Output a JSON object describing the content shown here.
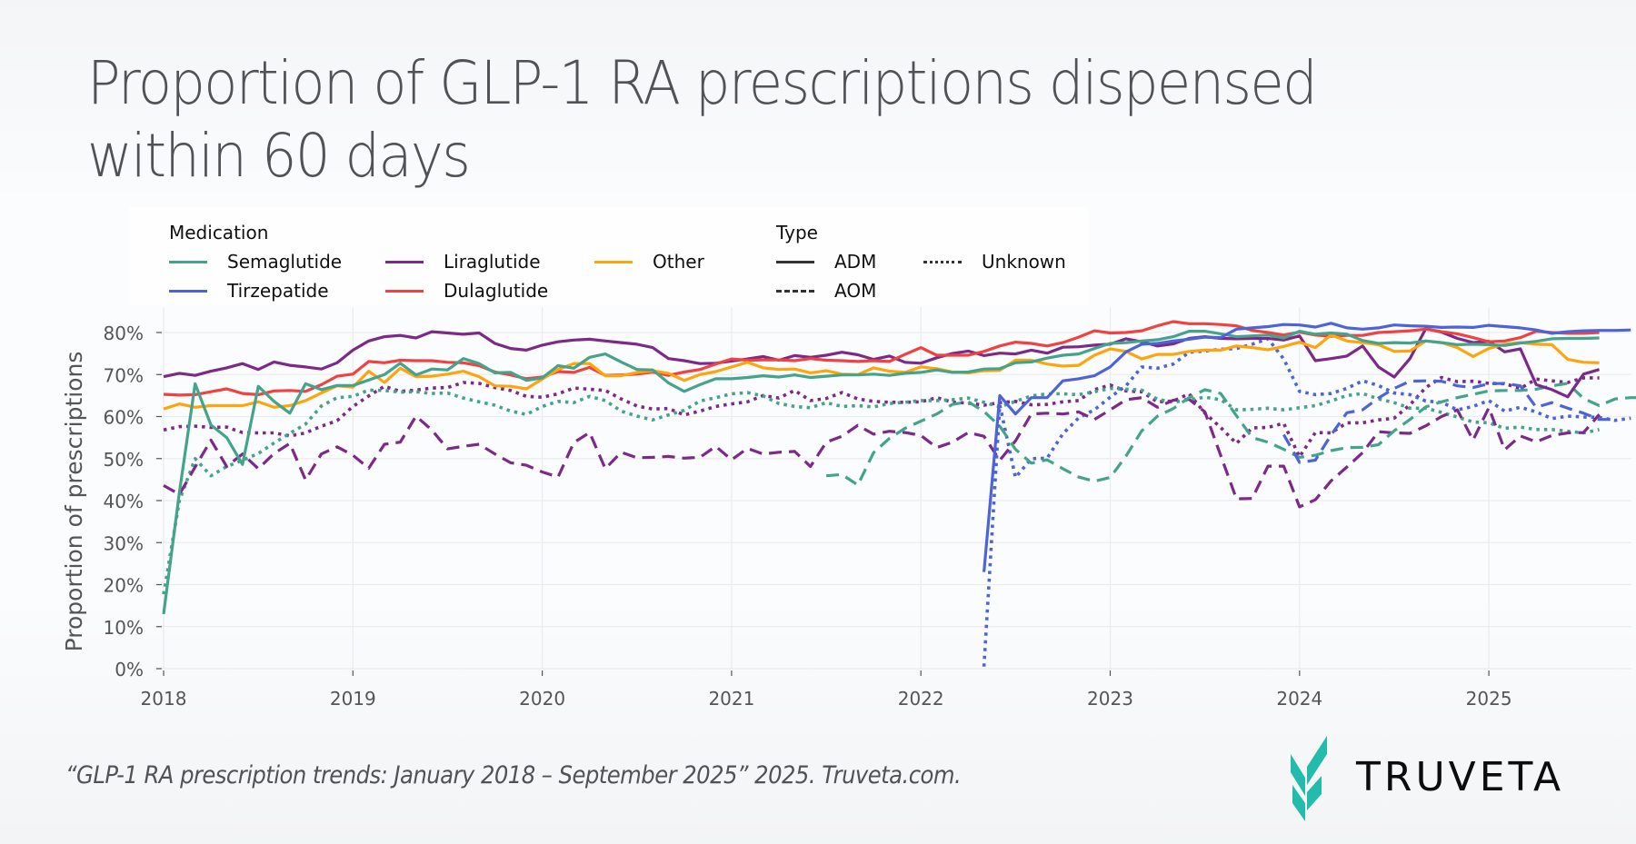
{
  "header": {
    "title_line1": "Proportion of GLP-1 RA prescriptions dispensed",
    "title_line2": "within 60 days"
  },
  "legend": {
    "medication_title": "Medication",
    "type_title": "Type",
    "medications": [
      {
        "label": "Semaglutide",
        "color": "#45a38c"
      },
      {
        "label": "Tirzepatide",
        "color": "#4c64d8"
      },
      {
        "label": "Liraglutide",
        "color": "#7b2a8a"
      },
      {
        "label": "Dulaglutide",
        "color": "#ef4241"
      },
      {
        "label": "Other",
        "color": "#ffa40a"
      }
    ],
    "types": [
      {
        "label": "ADM",
        "style": "solid"
      },
      {
        "label": "AOM",
        "style": "dashed"
      },
      {
        "label": "Unknown",
        "style": "dotted"
      }
    ]
  },
  "footer": {
    "citation": "“GLP-1 RA prescription trends: January 2018 – September 2025” 2025. Truveta.com.",
    "logo_text": "TRUVETA",
    "logo_color": "#23bcac"
  },
  "chart_data": {
    "type": "line",
    "title": "Proportion of GLP-1 RA prescriptions dispensed within 60 days",
    "xlabel": "",
    "ylabel": "Proportion of prescriptions",
    "x_start": "2018-01",
    "x_interval": "month",
    "xlim": [
      2018.0,
      2025.75
    ],
    "ylim": [
      0,
      82
    ],
    "y_ticks": [
      "0%",
      "10%",
      "20%",
      "30%",
      "40%",
      "50%",
      "60%",
      "70%",
      "80%"
    ],
    "x_ticks": [
      "2018",
      "2019",
      "2020",
      "2021",
      "2022",
      "2023",
      "2024",
      "2025"
    ],
    "grid": true,
    "legend_position": "top",
    "series": [
      {
        "name": "Liraglutide ADM",
        "medication": "Liraglutide",
        "type": "ADM",
        "start": 0,
        "values": [
          69.5,
          70.3,
          69.8,
          70.8,
          71.6,
          72.6,
          71.2,
          73,
          72.2,
          71.8,
          71.3,
          72.8,
          75.8,
          78,
          79,
          79.3,
          78.7,
          80.2,
          79.9,
          79.6,
          79.9,
          77.4,
          76.2,
          75.8,
          77,
          77.8,
          78.2,
          78.4,
          78,
          77.6,
          77.2,
          76.4,
          73.8,
          73.3,
          72.6,
          72.7,
          73.2,
          73.7,
          74.3,
          73.4,
          74.5,
          74.1,
          74.6,
          75.3,
          74.7,
          73.6,
          74.4,
          72.9,
          72.7,
          74,
          75,
          75.6,
          74.5,
          75.1,
          74.9,
          75.8,
          75.1,
          76.5,
          76.6,
          77,
          77.2,
          78.5,
          77.8,
          76.8,
          77.3,
          78.6,
          79,
          78.6,
          78.5,
          78.6,
          78.6,
          78.2,
          79.2,
          73.3,
          73.8,
          74.4,
          76.8,
          71.8,
          69.4,
          73.8,
          80.9,
          80.1,
          78.6,
          77.6,
          77.9,
          75.4,
          76.1,
          67.6,
          66.4,
          64.7,
          70.1,
          71.2
        ]
      },
      {
        "name": "Dulaglutide ADM",
        "medication": "Dulaglutide",
        "type": "ADM",
        "start": 0,
        "values": [
          65.3,
          65.1,
          65.2,
          65.9,
          66.6,
          65.5,
          65.2,
          66.1,
          66.2,
          66,
          67.6,
          69.6,
          70.1,
          73.1,
          72.8,
          73.4,
          73.3,
          73.3,
          72.9,
          72.8,
          72.1,
          70.6,
          69.9,
          69,
          69.4,
          70.7,
          70.5,
          71.7,
          69.8,
          69.9,
          70.1,
          70.6,
          69.8,
          70.6,
          71.2,
          72.5,
          73.7,
          73.4,
          73.5,
          73.5,
          73.3,
          73.8,
          73.4,
          73.3,
          73.1,
          73.3,
          73.1,
          74.8,
          76.4,
          74.6,
          74.6,
          74.6,
          75.5,
          76.8,
          77.7,
          77.4,
          76.8,
          77.6,
          78.9,
          80.4,
          79.9,
          80,
          80.4,
          81.6,
          82.6,
          82.1,
          82.1,
          81.9,
          81.6,
          80.5,
          80,
          79.4,
          80.1,
          79.4,
          79.1,
          79.3,
          79.3,
          80,
          80.2,
          80.4,
          80.8,
          80.2,
          79.7,
          78.8,
          77.8,
          78,
          78.8,
          80.3,
          80,
          79.8,
          79.8,
          80
        ]
      },
      {
        "name": "Other ADM",
        "medication": "Other",
        "type": "ADM",
        "start": 0,
        "values": [
          61.8,
          63,
          62.2,
          62.6,
          62.6,
          62.6,
          63.5,
          62.2,
          62.6,
          63.8,
          65.6,
          67.3,
          67,
          70.8,
          68.1,
          71.5,
          69.5,
          69.6,
          70.1,
          70.8,
          69.5,
          67.3,
          67.2,
          66.6,
          68.9,
          71.2,
          72.6,
          72.6,
          69.7,
          69.7,
          70.5,
          70.9,
          70.3,
          68.6,
          70,
          70.7,
          71.8,
          72.9,
          71.6,
          71.2,
          71.3,
          70.4,
          70.9,
          70.1,
          70,
          71.6,
          70.8,
          70.5,
          71.8,
          71.4,
          70.6,
          70.4,
          70.9,
          71,
          73.4,
          73.4,
          72.5,
          72,
          72.2,
          74.6,
          76.1,
          75.5,
          73.7,
          74.8,
          74.8,
          75.5,
          75.8,
          75.8,
          76.8,
          76.4,
          75.9,
          76.7,
          77.7,
          76.4,
          79.4,
          78,
          77.6,
          77.1,
          75.5,
          75.6,
          78,
          77.6,
          76.4,
          74.3,
          76.2,
          77.2,
          77.6,
          77.2,
          77.1,
          73.6,
          72.9,
          72.8
        ]
      },
      {
        "name": "Semaglutide ADM",
        "medication": "Semaglutide",
        "type": "ADM",
        "start": 0,
        "values": [
          13,
          42,
          67.8,
          58,
          55,
          48.6,
          67.2,
          63.6,
          60.8,
          67.8,
          66.4,
          67.4,
          67.4,
          68.7,
          70,
          72.7,
          69.9,
          71.3,
          71.1,
          73.8,
          72.6,
          70.4,
          70.5,
          68.6,
          69.2,
          72.1,
          71.5,
          74.1,
          74.9,
          73,
          71.2,
          71.1,
          68,
          66,
          67.6,
          69,
          69,
          69.3,
          69.7,
          69.4,
          69.9,
          69.3,
          69.6,
          69.9,
          69.9,
          70.1,
          69.8,
          70.3,
          70.5,
          71.1,
          70.5,
          70.6,
          71.3,
          71.4,
          72.8,
          73,
          73.9,
          74.6,
          74.9,
          76.2,
          77.4,
          77.6,
          78,
          78.3,
          79,
          80.3,
          80.3,
          79.7,
          79,
          79.2,
          79.4,
          78.7,
          80.3,
          79.6,
          79.9,
          79.6,
          78.1,
          77.4,
          77.6,
          77.5,
          78,
          77.6,
          77.1,
          77.2,
          77.1,
          76.9,
          77.5,
          77.9,
          78.5,
          78.6,
          78.6,
          78.7
        ]
      },
      {
        "name": "Tirzepatide ADM",
        "medication": "Tirzepatide",
        "type": "ADM",
        "start": 52,
        "values": [
          23,
          65,
          60.6,
          64.5,
          64.5,
          68.5,
          69,
          69.7,
          71.8,
          75.4,
          77.2,
          77.4,
          78,
          78.4,
          78.9,
          78.8,
          80.8,
          81.1,
          81.4,
          81.9,
          81.8,
          81.3,
          82.2,
          81.1,
          80.8,
          81.1,
          81.8,
          81.6,
          81.5,
          81.2,
          81.3,
          81.2,
          81.7,
          81.4,
          81.1,
          80.6,
          79.8,
          80.2,
          80.4,
          80.5,
          80.5,
          80.6
        ]
      },
      {
        "name": "Liraglutide Unknown",
        "medication": "Liraglutide",
        "type": "Unknown",
        "start": 0,
        "values": [
          56.8,
          57.6,
          57.7,
          57.4,
          57.5,
          56.2,
          56.1,
          56.1,
          55.4,
          56.1,
          57.7,
          59,
          62.4,
          64.9,
          67.2,
          66,
          66.3,
          66.8,
          66.9,
          68.1,
          67.9,
          66.9,
          66.2,
          64.8,
          64.6,
          65.4,
          66.8,
          66.5,
          66.2,
          64.2,
          62.5,
          61.8,
          61.9,
          60.4,
          61.3,
          62.4,
          63,
          63.5,
          65,
          64.4,
          66.2,
          63.8,
          64.3,
          65.7,
          64.2,
          63.6,
          63.4,
          63.4,
          63.5,
          64.5,
          63.4,
          63.2,
          62.7,
          63.3,
          63.6,
          62.8,
          62.9,
          63.5,
          63.8,
          66.4,
          67.5,
          66.1,
          65.9,
          63.5,
          63.7,
          65.4,
          60.8,
          57.4,
          53.6,
          57.3,
          57.4,
          58.4,
          50.4,
          56.2,
          56.1,
          58.5,
          58.5,
          59.2,
          59.6,
          62.8,
          66.9,
          69.3,
          68.3,
          68.4,
          67.9,
          67.8,
          66.7,
          68.9,
          68.5,
          68.1,
          69.2,
          69.2
        ]
      },
      {
        "name": "Semaglutide Unknown",
        "medication": "Semaglutide",
        "type": "Unknown",
        "start": 0,
        "values": [
          17.7,
          40,
          50,
          45.9,
          48.1,
          49.6,
          51.2,
          53.7,
          56,
          58.2,
          62.5,
          64.5,
          64.8,
          66.3,
          66.2,
          65.8,
          65.9,
          65.5,
          65.6,
          64.4,
          63.5,
          62.7,
          61.3,
          60.5,
          62.4,
          63.6,
          63.3,
          64.8,
          63.8,
          61.3,
          60.1,
          59.2,
          60.4,
          61.5,
          63.7,
          64.5,
          65.4,
          65.7,
          64.9,
          63.1,
          62.4,
          62.1,
          63.3,
          62.4,
          62.6,
          62.3,
          63.1,
          63.4,
          63.8,
          63.8,
          64,
          64.4,
          63.4,
          62.3,
          63.6,
          64.9,
          65.4,
          65.4,
          65.2,
          65.9,
          66.7,
          66.5,
          66.3,
          64.1,
          63.4,
          64,
          64.6,
          64,
          61.6,
          61.7,
          62,
          61.6,
          62.1,
          62.6,
          63.7,
          65,
          65.5,
          64.2,
          63.3,
          62,
          62,
          61,
          59.9,
          58.7,
          58.5,
          57.2,
          57.5,
          56.9,
          56.9,
          56.5,
          56.1,
          56.9
        ]
      },
      {
        "name": "Tirzepatide Unknown",
        "medication": "Tirzepatide",
        "type": "Unknown",
        "start": 52,
        "values": [
          0.5,
          62.8,
          45.5,
          50,
          50.1,
          55.9,
          59.7,
          61.6,
          64.6,
          67.3,
          71.8,
          71.5,
          72.5,
          75.3,
          75.6,
          76,
          76.2,
          77.2,
          78.5,
          73.7,
          66,
          65.2,
          65.5,
          66.7,
          68.5,
          67.4,
          65.6,
          65.2,
          63.7,
          63.4,
          61.6,
          62.4,
          63.8,
          61.3,
          62.2,
          61.1,
          59.5,
          60.1,
          59.9,
          59.8,
          59.1,
          59.6
        ]
      },
      {
        "name": "Liraglutide AOM",
        "medication": "Liraglutide",
        "type": "AOM",
        "start": 0,
        "values": [
          43.6,
          41.5,
          48,
          54.4,
          48.1,
          51.1,
          47.6,
          51.2,
          53.6,
          44.9,
          51.1,
          52.8,
          50.8,
          47.7,
          53.4,
          53.9,
          60.1,
          56.8,
          52.3,
          52.9,
          53.4,
          51.1,
          49,
          48.4,
          46.8,
          45.6,
          53.8,
          56.2,
          47.6,
          51.5,
          50.2,
          50.3,
          50.5,
          50.1,
          50.3,
          52.9,
          49.7,
          52.4,
          51.1,
          51.5,
          51.7,
          48.1,
          53.9,
          55.3,
          57.9,
          55.8,
          56.5,
          56.2,
          55.5,
          52.6,
          53.9,
          56.2,
          55.3,
          49.6,
          54.2,
          60.6,
          60.8,
          60.6,
          61.1,
          59.3,
          61.6,
          64,
          64.5,
          62.2,
          63.9,
          64.1,
          61.1,
          50.8,
          40.4,
          40.5,
          48.2,
          48.2,
          38.5,
          40.2,
          44.7,
          48,
          51.4,
          56.4,
          56.1,
          56,
          57.8,
          60,
          61.6,
          54.4,
          62.1,
          52.1,
          55.4,
          54,
          55.5,
          56.1,
          56.2,
          60.5
        ]
      },
      {
        "name": "Semaglutide AOM",
        "medication": "Semaglutide",
        "type": "AOM",
        "start": 42,
        "values": [
          45.9,
          46.2,
          43.7,
          51.4,
          54.8,
          57.2,
          58.9,
          60.6,
          62.9,
          63.5,
          61.2,
          57.7,
          52.2,
          48.9,
          49.7,
          47.6,
          45.6,
          44.6,
          45.5,
          50.6,
          56.6,
          60.1,
          61.9,
          64.5,
          66.4,
          65.5,
          60.2,
          55,
          53.9,
          52.2,
          50.3,
          50.8,
          51.9,
          52.6,
          52.7,
          53.3,
          56.6,
          59.3,
          62.3,
          63.5,
          64.5,
          65.3,
          66.1,
          66.2,
          66.2,
          66.5,
          67.3,
          67.9,
          64.3,
          62.6,
          64.2,
          64.5,
          64.5,
          64.6,
          66.4
        ]
      },
      {
        "name": "Tirzepatide AOM",
        "medication": "Tirzepatide",
        "type": "AOM",
        "start": 71,
        "values": [
          55.7,
          49.1,
          49.6,
          55.6,
          60.9,
          61.6,
          64.4,
          66.7,
          68.4,
          68.5,
          68.4,
          67.3,
          66.9,
          67.8,
          67.9,
          67.3,
          62.2,
          63.3,
          62,
          60.8,
          59.3,
          59.3
        ]
      }
    ]
  }
}
